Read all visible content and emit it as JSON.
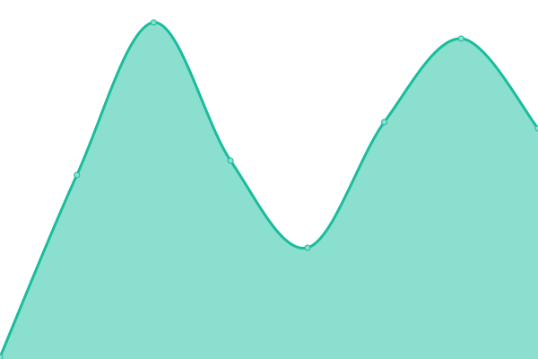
{
  "chart_data": {
    "type": "area",
    "title": "",
    "xlabel": "",
    "ylabel": "",
    "x": [
      0,
      1,
      2,
      3,
      4,
      5,
      6,
      7
    ],
    "values": [
      2,
      205,
      375,
      221,
      124,
      264,
      357,
      257
    ],
    "ylim": [
      0,
      400
    ],
    "xlim": [
      0,
      7
    ],
    "grid": false,
    "axes_visible": false,
    "smooth": true,
    "markers": true,
    "colors": {
      "line": "#1abc9c",
      "fill": "#8adfcf",
      "marker_fill": "#8adfcf"
    }
  }
}
